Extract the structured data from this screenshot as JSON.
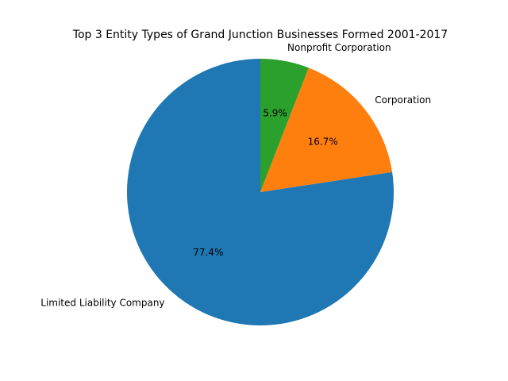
{
  "chart_data": {
    "type": "pie",
    "title": "Top 3 Entity Types of Grand Junction Businesses Formed 2001-2017",
    "slices": [
      {
        "label": "Limited Liability Company",
        "value": 77.4,
        "pct_label": "77.4%",
        "color": "#1f77b4"
      },
      {
        "label": "Corporation",
        "value": 16.7,
        "pct_label": "16.7%",
        "color": "#ff7f0e"
      },
      {
        "label": "Nonprofit Corporation",
        "value": 5.9,
        "pct_label": "5.9%",
        "color": "#2ca02c"
      }
    ],
    "start_angle_deg": 90,
    "direction": "counterclockwise",
    "legend": "none"
  }
}
